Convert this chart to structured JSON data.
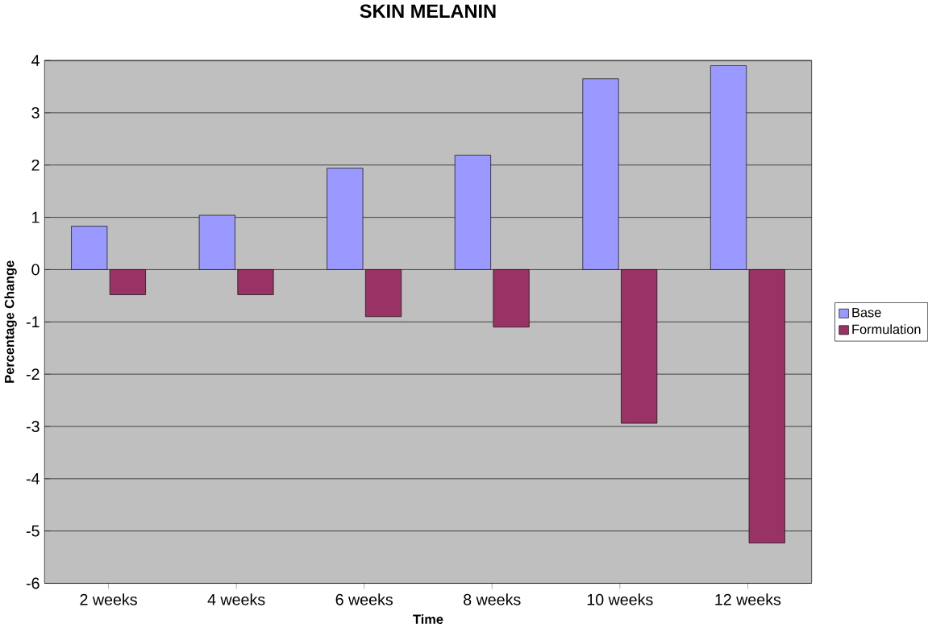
{
  "chart_data": {
    "type": "bar",
    "title": "SKIN MELANIN",
    "xlabel": "Time",
    "ylabel": "Percentage Change",
    "categories": [
      "2 weeks",
      "4 weeks",
      "6 weeks",
      "8 weeks",
      "10 weeks",
      "12 weeks"
    ],
    "series": [
      {
        "name": "Base",
        "color": "#9999ff",
        "values": [
          0.83,
          1.04,
          1.94,
          2.19,
          3.65,
          3.9
        ]
      },
      {
        "name": "Formulation",
        "color": "#993366",
        "values": [
          -0.48,
          -0.48,
          -0.9,
          -1.1,
          -2.94,
          -5.23
        ]
      }
    ],
    "ylim": [
      -6,
      4
    ],
    "yticks": [
      -6,
      -5,
      -4,
      -3,
      -2,
      -1,
      0,
      1,
      2,
      3,
      4
    ],
    "grid": "y",
    "legend": "right"
  }
}
